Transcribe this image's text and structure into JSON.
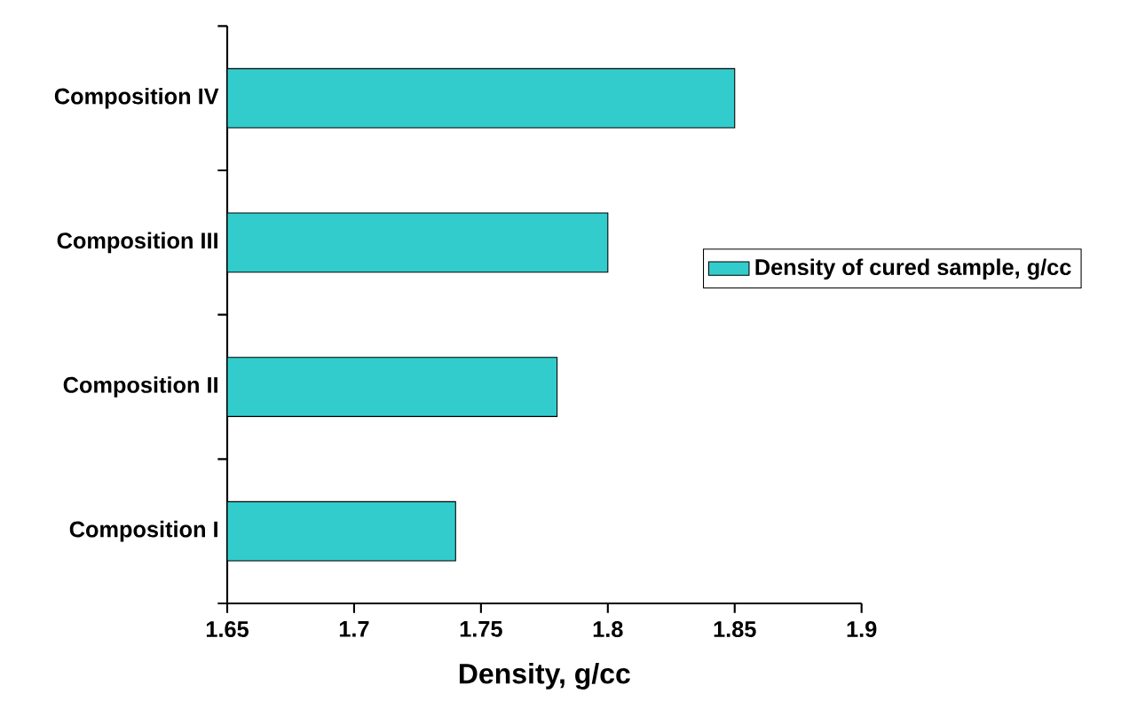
{
  "chart_data": {
    "type": "bar",
    "orientation": "horizontal",
    "xlabel": "Density, g/cc",
    "categories": [
      "Composition IV",
      "Composition III",
      "Composition II",
      "Composition I"
    ],
    "series": [
      {
        "name": "Density of cured sample, g/cc",
        "color": "#33cccc",
        "values": [
          1.85,
          1.8,
          1.78,
          1.74
        ]
      }
    ],
    "xlim": [
      1.65,
      1.9
    ],
    "xticks": [
      1.65,
      1.7,
      1.75,
      1.8,
      1.85,
      1.9
    ],
    "legend": "right"
  }
}
